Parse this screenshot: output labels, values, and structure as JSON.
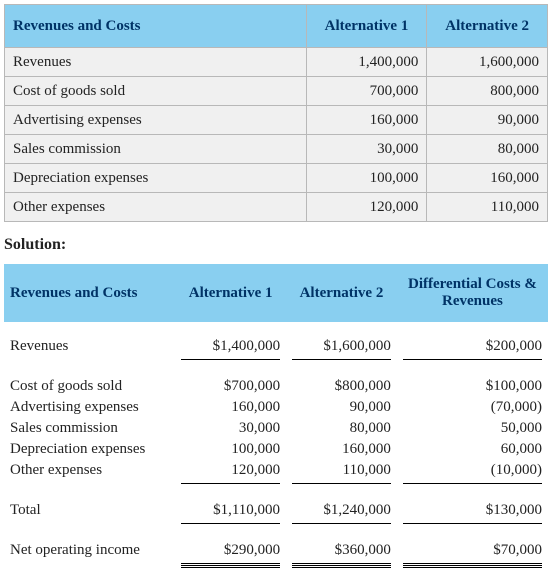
{
  "table1": {
    "headers": [
      "Revenues and Costs",
      "Alternative 1",
      "Alternative 2"
    ],
    "rows": [
      [
        "Revenues",
        "1,400,000",
        "1,600,000"
      ],
      [
        "Cost of goods sold",
        "700,000",
        "800,000"
      ],
      [
        "Advertising expenses",
        "160,000",
        "90,000"
      ],
      [
        "Sales commission",
        "30,000",
        "80,000"
      ],
      [
        "Depreciation expenses",
        "100,000",
        "160,000"
      ],
      [
        "Other expenses",
        "120,000",
        "110,000"
      ]
    ],
    "col_align": [
      "left",
      "right",
      "right"
    ],
    "header_bg": "#89cff0",
    "header_color": "#003366",
    "cell_bg": "#f0f0f0",
    "border_color": "#b8b8b8"
  },
  "solution_label": "Solution:",
  "table2": {
    "headers": [
      "Revenues and Costs",
      "Alternative 1",
      "Alternative 2",
      "Differential Costs & Revenues"
    ],
    "revenues": {
      "label": "Revenues",
      "a1": "$1,400,000",
      "a2": "$1,600,000",
      "diff": "$200,000"
    },
    "expenses": [
      {
        "label": "Cost of goods sold",
        "a1": "$700,000",
        "a2": "$800,000",
        "diff": "$100,000"
      },
      {
        "label": "Advertising expenses",
        "a1": "160,000",
        "a2": "90,000",
        "diff": "(70,000)"
      },
      {
        "label": "Sales commission",
        "a1": "30,000",
        "a2": "80,000",
        "diff": "50,000"
      },
      {
        "label": "Depreciation expenses",
        "a1": "100,000",
        "a2": "160,000",
        "diff": "60,000"
      },
      {
        "label": "Other expenses",
        "a1": "120,000",
        "a2": "110,000",
        "diff": "(10,000)"
      }
    ],
    "total": {
      "label": "Total",
      "a1": "$1,110,000",
      "a2": "$1,240,000",
      "diff": "$130,000"
    },
    "netincome": {
      "label": "Net operating income",
      "a1": "$290,000",
      "a2": "$360,000",
      "diff": "$70,000"
    },
    "header_bg": "#89cff0",
    "header_color": "#003366"
  }
}
